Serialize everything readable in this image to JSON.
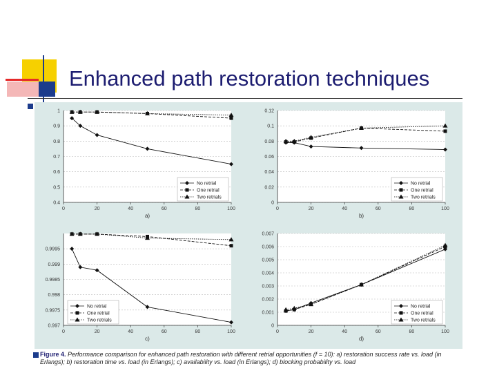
{
  "slide": {
    "title": "Enhanced path restoration techniques",
    "caption_label": "Figure 4.",
    "caption_text": " Performance comparison for enhanced path restoration with different retrial opportunities (f = 10): a) restoration success rate vs. load (in Erlangs); b) restoration time vs. load (in Erlangs); c) availability vs. load (in Erlangs); d) blocking probability vs. load",
    "colors": {
      "accent_yellow": "#f6d000",
      "accent_red": "#e52a2a",
      "accent_blue": "#1c3c8c",
      "title": "#1c1c70",
      "figure_bg": "#dbe9e8"
    }
  },
  "chart_data": [
    {
      "type": "line",
      "panel_label": "a)",
      "x": [
        5,
        10,
        20,
        50,
        100
      ],
      "xticks": [
        "0",
        "20",
        "40",
        "60",
        "80",
        "100"
      ],
      "xlim": [
        0,
        100
      ],
      "ylim": [
        0.4,
        1
      ],
      "yticks": [
        "0.4",
        "0.5",
        "0.6",
        "0.7",
        "0.8",
        "0.9",
        "1"
      ],
      "legend_position": "bottom-right",
      "series": [
        {
          "name": "No retrial",
          "marker": "diamond",
          "values": [
            0.95,
            0.9,
            0.84,
            0.75,
            0.65
          ]
        },
        {
          "name": "One retrial",
          "marker": "square",
          "values": [
            0.99,
            0.99,
            0.99,
            0.98,
            0.95
          ]
        },
        {
          "name": "Two retrials",
          "marker": "triangle",
          "values": [
            0.99,
            0.99,
            0.99,
            0.98,
            0.97
          ]
        }
      ]
    },
    {
      "type": "line",
      "panel_label": "b)",
      "x": [
        5,
        10,
        20,
        50,
        100
      ],
      "xticks": [
        "0",
        "20",
        "40",
        "60",
        "80",
        "100"
      ],
      "xlim": [
        0,
        100
      ],
      "ylim": [
        0,
        0.12
      ],
      "yticks": [
        "0",
        "0.02",
        "0.04",
        "0.06",
        "0.08",
        "0.1",
        "0.12"
      ],
      "legend_position": "bottom-right",
      "series": [
        {
          "name": "No retrial",
          "marker": "diamond",
          "values": [
            0.078,
            0.078,
            0.073,
            0.071,
            0.069
          ]
        },
        {
          "name": "One retrial",
          "marker": "square",
          "values": [
            0.079,
            0.079,
            0.084,
            0.097,
            0.093
          ]
        },
        {
          "name": "Two retrials",
          "marker": "triangle",
          "values": [
            0.08,
            0.08,
            0.085,
            0.097,
            0.1
          ]
        }
      ]
    },
    {
      "type": "line",
      "panel_label": "c)",
      "x": [
        5,
        10,
        20,
        50,
        100
      ],
      "xticks": [
        "0",
        "20",
        "40",
        "60",
        "80",
        "100"
      ],
      "xlim": [
        0,
        100
      ],
      "ylim": [
        0.997,
        1
      ],
      "yticks": [
        "0.997",
        "0.9975",
        "0.998",
        "0.9985",
        "0.999",
        "0.9995"
      ],
      "legend_position": "bottom-left",
      "series": [
        {
          "name": "No retrial",
          "marker": "diamond",
          "values": [
            0.9995,
            0.9989,
            0.9988,
            0.9976,
            0.9971
          ]
        },
        {
          "name": "One retrial",
          "marker": "square",
          "values": [
            0.99998,
            0.99998,
            0.99998,
            0.9999,
            0.9996
          ]
        },
        {
          "name": "Two retrials",
          "marker": "triangle",
          "values": [
            0.99998,
            0.99998,
            0.99998,
            0.99985,
            0.9998
          ]
        }
      ]
    },
    {
      "type": "line",
      "panel_label": "d)",
      "x": [
        5,
        10,
        20,
        50,
        100
      ],
      "xticks": [
        "0",
        "20",
        "40",
        "60",
        "80",
        "100"
      ],
      "xlim": [
        0,
        100
      ],
      "ylim": [
        0,
        0.007
      ],
      "yticks": [
        "0",
        "0.001",
        "0.002",
        "0.003",
        "0.004",
        "0.005",
        "0.006",
        "0.007"
      ],
      "legend_position": "bottom-right",
      "series": [
        {
          "name": "No retrial",
          "marker": "diamond",
          "values": [
            0.0011,
            0.0012,
            0.0017,
            0.0031,
            0.0058
          ]
        },
        {
          "name": "One retrial",
          "marker": "square",
          "values": [
            0.0011,
            0.0012,
            0.0016,
            0.0031,
            0.006
          ]
        },
        {
          "name": "Two retrials",
          "marker": "triangle",
          "values": [
            0.0012,
            0.0013,
            0.0016,
            0.0031,
            0.0061
          ]
        }
      ]
    }
  ]
}
